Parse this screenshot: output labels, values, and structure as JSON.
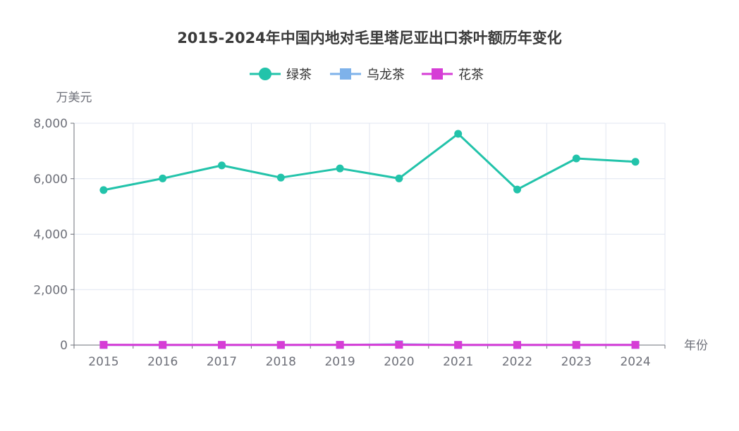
{
  "chart_data": {
    "type": "line",
    "title": "2015-2024年中国内地对毛里塔尼亚出口茶叶额历年变化",
    "xlabel": "年份",
    "ylabel": "万美元",
    "categories": [
      "2015",
      "2016",
      "2017",
      "2018",
      "2019",
      "2020",
      "2021",
      "2022",
      "2023",
      "2024"
    ],
    "ylim": [
      0,
      8000
    ],
    "yticks": [
      0,
      2000,
      4000,
      6000,
      8000
    ],
    "ytick_labels": [
      "0",
      "2,000",
      "4,000",
      "6,000",
      "8,000"
    ],
    "grid": true,
    "legend_position": "top-center",
    "series": [
      {
        "name": "绿茶",
        "marker": "circle",
        "color": "#22c3aa",
        "values": [
          5590,
          6010,
          6480,
          6040,
          6370,
          6010,
          7620,
          5610,
          6730,
          6610
        ]
      },
      {
        "name": "乌龙茶",
        "marker": "square",
        "color": "#7eb2ea",
        "values": [
          5,
          3,
          4,
          3,
          6,
          30,
          4,
          3,
          4,
          5
        ]
      },
      {
        "name": "花茶",
        "marker": "square",
        "color": "#d63dd6",
        "values": [
          8,
          6,
          7,
          5,
          8,
          10,
          6,
          5,
          6,
          7
        ]
      }
    ]
  }
}
